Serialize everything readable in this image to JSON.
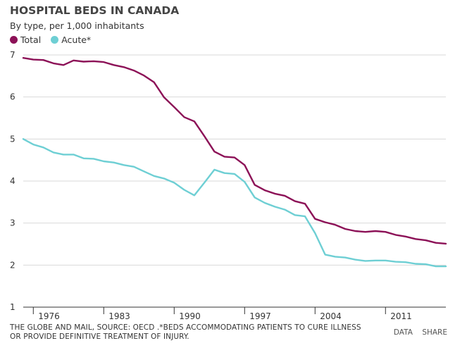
{
  "title": "HOSPITAL BEDS IN CANADA",
  "subtitle": "By type, per 1,000 inhabitants",
  "source": [
    "THE GLOBE AND MAIL, SOURCE: OECD .*BEDS ACCOMMODATING PATIENTS TO CURE ILLNESS",
    "OR PROVIDE DEFINITIVE TREATMENT OF INJURY."
  ],
  "links": {
    "data": "DATA",
    "share": "SHARE"
  },
  "chart_data": {
    "type": "line",
    "xlim": [
      1975,
      2017
    ],
    "ylim": [
      1,
      7
    ],
    "x_ticks": [
      1976,
      1983,
      1990,
      1997,
      2004,
      2011
    ],
    "y_ticks": [
      1,
      2,
      3,
      4,
      5,
      6,
      7
    ],
    "grid": "horizontal",
    "legend_position": "top-left",
    "series": [
      {
        "name": "Total",
        "color": "#8c1157",
        "x": [
          1975,
          1976,
          1977,
          1978,
          1979,
          1980,
          1981,
          1982,
          1983,
          1984,
          1985,
          1986,
          1987,
          1988,
          1989,
          1990,
          1991,
          1992,
          1993,
          1994,
          1995,
          1996,
          1997,
          1998,
          1999,
          2000,
          2001,
          2002,
          2003,
          2004,
          2005,
          2006,
          2007,
          2008,
          2009,
          2010,
          2011,
          2012,
          2013,
          2014,
          2015,
          2016,
          2017
        ],
        "values": [
          6.93,
          6.89,
          6.88,
          6.8,
          6.76,
          6.87,
          6.84,
          6.85,
          6.83,
          6.76,
          6.71,
          6.63,
          6.51,
          6.35,
          5.99,
          5.76,
          5.52,
          5.42,
          5.07,
          4.7,
          4.58,
          4.56,
          4.38,
          3.91,
          3.78,
          3.7,
          3.65,
          3.52,
          3.46,
          3.1,
          3.02,
          2.96,
          2.86,
          2.81,
          2.79,
          2.81,
          2.79,
          2.72,
          2.68,
          2.62,
          2.59,
          2.53,
          2.51
        ]
      },
      {
        "name": "Acute*",
        "color": "#6ecfd4",
        "x": [
          1975,
          1976,
          1977,
          1978,
          1979,
          1980,
          1981,
          1982,
          1983,
          1984,
          1985,
          1986,
          1987,
          1988,
          1989,
          1990,
          1991,
          1992,
          1993,
          1994,
          1995,
          1996,
          1997,
          1998,
          1999,
          2000,
          2001,
          2002,
          2003,
          2004,
          2005,
          2006,
          2007,
          2008,
          2009,
          2010,
          2011,
          2012,
          2013,
          2014,
          2015,
          2016,
          2017
        ],
        "values": [
          5.0,
          4.87,
          4.8,
          4.68,
          4.63,
          4.63,
          4.54,
          4.53,
          4.47,
          4.44,
          4.38,
          4.34,
          4.23,
          4.12,
          4.06,
          3.96,
          3.79,
          3.66,
          3.96,
          4.27,
          4.19,
          4.17,
          3.98,
          3.61,
          3.48,
          3.39,
          3.32,
          3.19,
          3.16,
          2.76,
          2.25,
          2.2,
          2.18,
          2.13,
          2.1,
          2.11,
          2.11,
          2.08,
          2.07,
          2.03,
          2.02,
          1.97,
          1.97
        ]
      }
    ]
  }
}
